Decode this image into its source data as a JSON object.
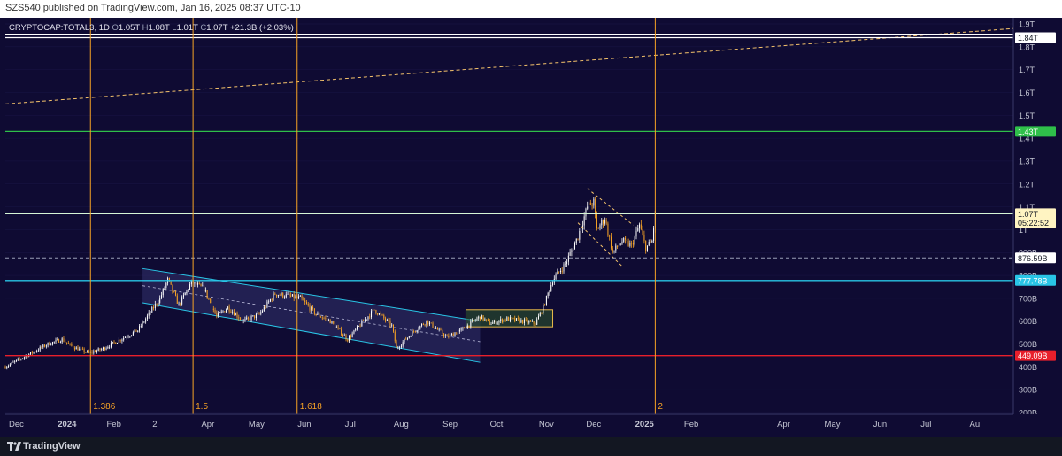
{
  "header": {
    "published": "SZS540 published on TradingView.com, Jan 16, 2025 08:37 UTC-10"
  },
  "brand": {
    "name": "TradingView",
    "icon": "tradingview-logo-icon"
  },
  "chart_data": {
    "type": "candlestick",
    "legend": {
      "symbol": "CRYPTOCAP:TOTAL3",
      "interval": "1D",
      "o_prefix": "O",
      "o": "1.05T",
      "h_prefix": "H",
      "h": "1.08T",
      "l_prefix": "L",
      "l": "1.01T",
      "c_prefix": "C",
      "c": "1.07T",
      "change": "+21.3B (+2.03%)"
    },
    "y_axis": {
      "range": [
        0.2,
        1.9
      ],
      "ticks": [
        {
          "v": 0.2,
          "label": "200B"
        },
        {
          "v": 0.3,
          "label": "300B"
        },
        {
          "v": 0.4,
          "label": "400B"
        },
        {
          "v": 0.5,
          "label": "500B"
        },
        {
          "v": 0.6,
          "label": "600B"
        },
        {
          "v": 0.7,
          "label": "700B"
        },
        {
          "v": 0.8,
          "label": "800B"
        },
        {
          "v": 0.9,
          "label": "900B"
        },
        {
          "v": 1.0,
          "label": "1T"
        },
        {
          "v": 1.1,
          "label": "1.1T"
        },
        {
          "v": 1.2,
          "label": "1.2T"
        },
        {
          "v": 1.3,
          "label": "1.3T"
        },
        {
          "v": 1.4,
          "label": "1.4T"
        },
        {
          "v": 1.5,
          "label": "1.5T"
        },
        {
          "v": 1.6,
          "label": "1.6T"
        },
        {
          "v": 1.7,
          "label": "1.7T"
        },
        {
          "v": 1.8,
          "label": "1.8T"
        },
        {
          "v": 1.9,
          "label": "1.9T"
        }
      ]
    },
    "x_axis": {
      "range": [
        "2023-12-01",
        "2025-08-31"
      ],
      "ticks": [
        {
          "date": "2023-12-01",
          "label": "Dec"
        },
        {
          "date": "2024-01-01",
          "label": "2024",
          "bold": true
        },
        {
          "date": "2024-02-01",
          "label": "Feb"
        },
        {
          "date": "2024-03-01",
          "label": "2"
        },
        {
          "date": "2024-04-01",
          "label": "Apr"
        },
        {
          "date": "2024-05-01",
          "label": "May"
        },
        {
          "date": "2024-06-01",
          "label": "Jun"
        },
        {
          "date": "2024-07-01",
          "label": "Jul"
        },
        {
          "date": "2024-08-01",
          "label": "Aug"
        },
        {
          "date": "2024-09-01",
          "label": "Sep"
        },
        {
          "date": "2024-10-01",
          "label": "Oct"
        },
        {
          "date": "2024-11-01",
          "label": "Nov"
        },
        {
          "date": "2024-12-01",
          "label": "Dec"
        },
        {
          "date": "2025-01-01",
          "label": "2025",
          "bold": true
        },
        {
          "date": "2025-02-01",
          "label": "Feb"
        },
        {
          "date": "2025-04-01",
          "label": "Apr"
        },
        {
          "date": "2025-05-01",
          "label": "May"
        },
        {
          "date": "2025-06-01",
          "label": "Jun"
        },
        {
          "date": "2025-07-01",
          "label": "Jul"
        },
        {
          "date": "2025-08-01",
          "label": "Au"
        }
      ]
    },
    "price_path": [
      [
        "2023-12-01",
        0.4
      ],
      [
        "2023-12-12",
        0.44
      ],
      [
        "2023-12-20",
        0.47
      ],
      [
        "2023-12-28",
        0.5
      ],
      [
        "2024-01-06",
        0.52
      ],
      [
        "2024-01-12",
        0.49
      ],
      [
        "2024-01-23",
        0.46
      ],
      [
        "2024-02-01",
        0.48
      ],
      [
        "2024-02-12",
        0.52
      ],
      [
        "2024-02-23",
        0.56
      ],
      [
        "2024-03-02",
        0.64
      ],
      [
        "2024-03-08",
        0.7
      ],
      [
        "2024-03-13",
        0.78
      ],
      [
        "2024-03-20",
        0.67
      ],
      [
        "2024-03-28",
        0.77
      ],
      [
        "2024-04-05",
        0.74
      ],
      [
        "2024-04-13",
        0.62
      ],
      [
        "2024-04-20",
        0.66
      ],
      [
        "2024-04-30",
        0.6
      ],
      [
        "2024-05-10",
        0.63
      ],
      [
        "2024-05-20",
        0.72
      ],
      [
        "2024-05-28",
        0.71
      ],
      [
        "2024-06-05",
        0.7
      ],
      [
        "2024-06-15",
        0.63
      ],
      [
        "2024-06-24",
        0.6
      ],
      [
        "2024-07-05",
        0.52
      ],
      [
        "2024-07-15",
        0.6
      ],
      [
        "2024-07-22",
        0.65
      ],
      [
        "2024-08-02",
        0.58
      ],
      [
        "2024-08-05",
        0.48
      ],
      [
        "2024-08-15",
        0.55
      ],
      [
        "2024-08-24",
        0.6
      ],
      [
        "2024-09-06",
        0.53
      ],
      [
        "2024-09-15",
        0.56
      ],
      [
        "2024-09-27",
        0.62
      ],
      [
        "2024-10-03",
        0.59
      ],
      [
        "2024-10-14",
        0.61
      ],
      [
        "2024-10-24",
        0.6
      ],
      [
        "2024-11-01",
        0.59
      ],
      [
        "2024-11-06",
        0.66
      ],
      [
        "2024-11-12",
        0.78
      ],
      [
        "2024-11-20",
        0.85
      ],
      [
        "2024-11-28",
        0.97
      ],
      [
        "2024-12-04",
        1.1
      ],
      [
        "2024-12-08",
        1.12
      ],
      [
        "2024-12-10",
        1.0
      ],
      [
        "2024-12-15",
        1.05
      ],
      [
        "2024-12-20",
        0.9
      ],
      [
        "2024-12-26",
        0.95
      ],
      [
        "2025-01-01",
        0.93
      ],
      [
        "2025-01-06",
        1.02
      ],
      [
        "2025-01-10",
        0.92
      ],
      [
        "2025-01-14",
        0.95
      ],
      [
        "2025-01-16",
        1.07
      ]
    ],
    "horizontal_lines": [
      {
        "value": 1.84,
        "color": "#ffffff",
        "label": "1.84T",
        "label_bg": "#ffffff",
        "label_color": "#131722"
      },
      {
        "value": 1.43,
        "color": "#2fbf4a",
        "label": "1.43T",
        "label_bg": "#2fbf4a",
        "label_color": "#ffffff"
      },
      {
        "value": 1.07,
        "color": "#d6f5d6",
        "label": "1.07T",
        "label2": "05:22:52",
        "label_bg": "#fff4c2",
        "label_color": "#131722"
      },
      {
        "value": 0.8766,
        "color": "#9aa0b8",
        "dashed": true,
        "label": "876.59B",
        "label_bg": "#ffffff",
        "label_color": "#131722"
      },
      {
        "value": 0.7778,
        "color": "#29c5e6",
        "label": "777.78B",
        "label_bg": "#29c5e6",
        "label_color": "#ffffff"
      },
      {
        "value": 0.4491,
        "color": "#e81f2b",
        "label": "449.09B",
        "label_bg": "#e81f2b",
        "label_color": "#ffffff"
      }
    ],
    "vertical_lines": [
      {
        "date": "2024-01-24",
        "label": "1.386"
      },
      {
        "date": "2024-03-29",
        "label": "1.5"
      },
      {
        "date": "2024-06-03",
        "label": "1.618"
      },
      {
        "date": "2025-01-16",
        "label": "2"
      }
    ],
    "trendline": {
      "from": [
        "2023-12-01",
        1.55
      ],
      "to": [
        "2025-08-31",
        1.88
      ],
      "color": "#f5c36b"
    },
    "channel": {
      "upper": {
        "from": [
          "2024-02-26",
          0.83
        ],
        "to": [
          "2024-09-27",
          0.6
        ]
      },
      "lower": {
        "from": [
          "2024-02-26",
          0.68
        ],
        "to": [
          "2024-09-27",
          0.42
        ]
      },
      "color": "#29c5e6"
    },
    "range_box": {
      "x1": "2024-09-18",
      "x2": "2024-11-12",
      "y1": 0.575,
      "y2": 0.65,
      "color": "#e6b84a"
    },
    "wedge": {
      "upper": {
        "from": [
          "2024-12-04",
          1.18
        ],
        "to": [
          "2025-01-02",
          1.02
        ]
      },
      "lower": {
        "from": [
          "2024-11-28",
          1.03
        ],
        "to": [
          "2024-12-26",
          0.84
        ]
      }
    },
    "colors": {
      "background": "#0f0b33",
      "candle_up": "#ffffff",
      "candle_down": "#f7a325",
      "grid": "#24205a"
    }
  }
}
